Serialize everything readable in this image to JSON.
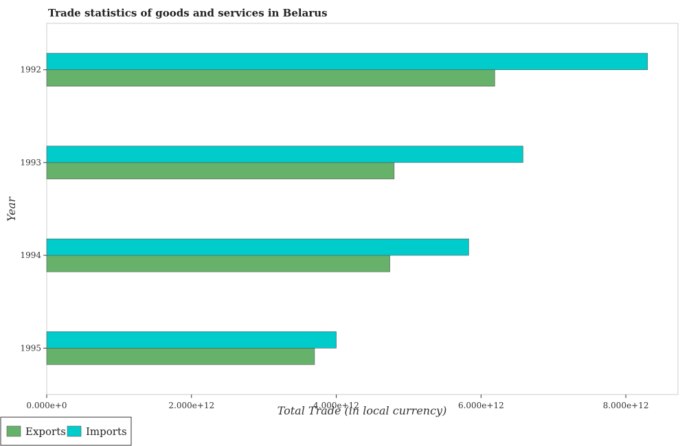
{
  "chart_data": {
    "type": "bar",
    "orientation": "horizontal",
    "title": "Trade statistics of goods and services in Belarus",
    "xlabel": "Total Trade (in local currency)",
    "ylabel": "Year",
    "categories": [
      "1992",
      "1993",
      "1994",
      "1995"
    ],
    "series": [
      {
        "name": "Exports",
        "color": "#66b26b",
        "values": [
          6190000000000.0,
          4800000000000.0,
          4740000000000.0,
          3700000000000.0
        ]
      },
      {
        "name": "Imports",
        "color": "#00cccc",
        "values": [
          8300000000000.0,
          6580000000000.0,
          5830000000000.0,
          4000000000000.0
        ]
      }
    ],
    "xlim": [
      0,
      8720000000000.0
    ],
    "xticks": [
      0,
      2000000000000.0,
      4000000000000.0,
      6000000000000.0,
      8000000000000.0
    ],
    "xtick_labels": [
      "0.000e+0",
      "2.000e+12",
      "4.000e+12",
      "6.000e+12",
      "8.000e+12"
    ],
    "grid": false,
    "legend_position": "bottom-left"
  }
}
